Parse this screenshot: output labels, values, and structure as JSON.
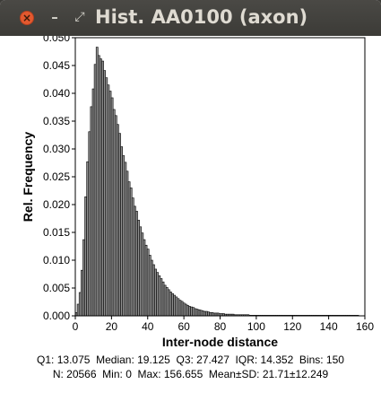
{
  "window": {
    "title": "Hist. AA0100 (axon)",
    "close_glyph": "×",
    "minimize_glyph": "–",
    "maximize_glyph": "⤢"
  },
  "stats": {
    "line1": "Q1: 13.075  Median: 19.125  Q3: 27.427  IQR: 14.352  Bins: 150",
    "line2": "N: 20566  Min: 0  Max: 156.655  Mean±SD: 21.71±12.249"
  },
  "chart_data": {
    "type": "bar",
    "xlabel": "Inter-node distance",
    "ylabel": "Rel. Frequency",
    "xlim": [
      0,
      160
    ],
    "ylim": [
      0,
      0.05
    ],
    "x_ticks": [
      0,
      20,
      40,
      60,
      80,
      100,
      120,
      140,
      160
    ],
    "y_ticks": [
      "0.000",
      "0.005",
      "0.010",
      "0.015",
      "0.020",
      "0.025",
      "0.030",
      "0.035",
      "0.040",
      "0.045",
      "0.050"
    ],
    "bin_width": 1.044,
    "bins_start": [
      0,
      1.04,
      2.09,
      3.13,
      4.18,
      5.22,
      6.26,
      7.31,
      8.35,
      9.4,
      10.44,
      11.49,
      12.53,
      13.57,
      14.62,
      15.66,
      16.71,
      17.75,
      18.8,
      19.84,
      20.88,
      21.93,
      22.97,
      24.02,
      25.06,
      26.1,
      27.15,
      28.19,
      29.24,
      30.28,
      31.32,
      32.37,
      33.41,
      34.46,
      35.5,
      36.54,
      37.59,
      38.63,
      39.68,
      40.72,
      41.76,
      42.81,
      43.85,
      44.9,
      45.94,
      46.98,
      48.03,
      49.07,
      50.12,
      51.16,
      52.2,
      53.25,
      54.29,
      55.34,
      56.38,
      57.42,
      58.47,
      59.51,
      60.56,
      61.6,
      62.64,
      63.69,
      64.73,
      65.78,
      66.82,
      67.86,
      68.91,
      69.95,
      71,
      72.04,
      73.08,
      74.13,
      75.17,
      76.22,
      77.26,
      78.3,
      79.35,
      80.39,
      81.44,
      82.48,
      83.52,
      84.57,
      85.61,
      86.66,
      87.7,
      88.74,
      89.79,
      90.83,
      91.88,
      92.92,
      93.96,
      95.01,
      96.05,
      97.1,
      98.14,
      99.18,
      100.23,
      101.27,
      102.32,
      103.36,
      104.4,
      105.45,
      106.49,
      107.54,
      108.58,
      109.62,
      110.67,
      111.71,
      112.76,
      113.8,
      114.84,
      115.89,
      116.93,
      117.98,
      119.02,
      120.06,
      121.11,
      122.15,
      123.2,
      124.24,
      125.28,
      126.33,
      127.37,
      128.42,
      129.46,
      130.5,
      131.55,
      132.59,
      133.64,
      134.68,
      135.72,
      136.77,
      137.81,
      138.86,
      139.9,
      140.94,
      141.99,
      143.03,
      144.08,
      145.12,
      146.16,
      147.21,
      148.25,
      149.3,
      150.34,
      151.38,
      152.43,
      153.47,
      154.52,
      155.56
    ],
    "values": [
      0.0006,
      0.0021,
      0.0042,
      0.0082,
      0.0137,
      0.0214,
      0.0277,
      0.0331,
      0.0376,
      0.0408,
      0.0452,
      0.0483,
      0.0468,
      0.0462,
      0.0458,
      0.0441,
      0.0428,
      0.0415,
      0.0404,
      0.0392,
      0.0371,
      0.036,
      0.0344,
      0.0328,
      0.0304,
      0.0288,
      0.0276,
      0.026,
      0.0241,
      0.023,
      0.0212,
      0.0197,
      0.0188,
      0.0172,
      0.016,
      0.0149,
      0.0137,
      0.0127,
      0.012,
      0.0109,
      0.01,
      0.0092,
      0.0084,
      0.0078,
      0.0072,
      0.0067,
      0.0061,
      0.0055,
      0.0051,
      0.0047,
      0.0043,
      0.004,
      0.0037,
      0.0034,
      0.0031,
      0.0028,
      0.0026,
      0.0023,
      0.0021,
      0.0019,
      0.0017,
      0.0016,
      0.0015,
      0.0013,
      0.0012,
      0.0011,
      0.001,
      0.0009,
      0.0008,
      0.0008,
      0.0007,
      0.0006,
      0.0006,
      0.0005,
      0.0005,
      0.0005,
      0.0004,
      0.0004,
      0.0004,
      0.0003,
      0.0003,
      0.0003,
      0.0003,
      0.0003,
      0.0002,
      0.0002,
      0.0002,
      0.0002,
      0.0002,
      0.0002,
      0.0002,
      0.0002,
      0.0001,
      0.0001,
      0.0001,
      0.0001,
      0.0001,
      0.0001,
      0.0001,
      0.0001,
      0.0001,
      0.0001,
      0.0001,
      0.0001,
      0.0001,
      0.0001,
      0.0001,
      0.0001,
      0.0001,
      0.0001,
      0.0001,
      0.0001,
      0.0001,
      0.0001,
      0.0001,
      0.0001,
      0.0001,
      0.0001,
      0.0001,
      0.0001,
      0.0001,
      0.0001,
      0.0001,
      0.0001,
      0.0001,
      0.0001,
      0.0001,
      0.0001,
      0.0001,
      0.0001,
      0.0001,
      0.0001,
      0.0001,
      0.0001,
      0.0001,
      0.0001,
      0.0001,
      0.0001,
      0.0001,
      0.0001,
      0.0001,
      0.0001,
      0.0001,
      0.0001,
      0.0001,
      0.0001,
      0.0001,
      0.0001,
      0.0001,
      0.0001,
      0.0001,
      0.0001
    ],
    "bar_fill": "#909090",
    "bar_stroke": "#000000",
    "grid": false,
    "legend": "none"
  }
}
